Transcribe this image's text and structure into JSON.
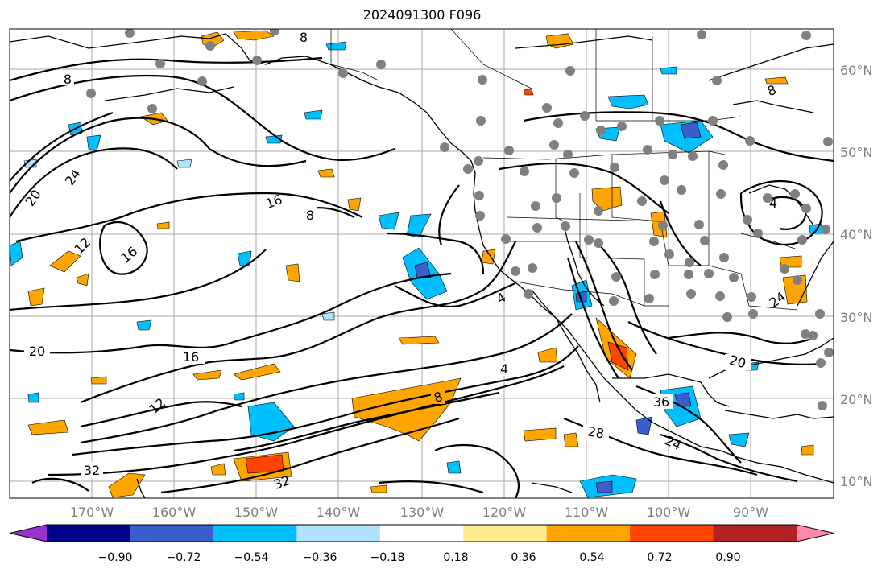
{
  "title": "2024091300 F096",
  "lon_labels": [
    "170°W",
    "160°W",
    "150°W",
    "140°W",
    "130°W",
    "120°W",
    "110°W",
    "100°W",
    "90°W"
  ],
  "lat_labels": [
    "60°N",
    "50°N",
    "40°N",
    "30°N",
    "20°N",
    "10°N"
  ],
  "contour_labels": [
    "8",
    "8",
    "20",
    "24",
    "12",
    "16",
    "16",
    "8",
    "20",
    "16",
    "12",
    "32",
    "32",
    "4",
    "8",
    "28",
    "24",
    "36",
    "20",
    "4",
    "24",
    "8",
    "4"
  ],
  "colorbar": {
    "ticks": [
      "−0.90",
      "−0.72",
      "−0.54",
      "−0.36",
      "−0.18",
      "0.18",
      "0.36",
      "0.54",
      "0.72",
      "0.90"
    ],
    "colors": [
      "#9b30d0",
      "#00008b",
      "#3a5fcd",
      "#00bfff",
      "#b0e2ff",
      "#ffffff",
      "#ffec8b",
      "#ffa500",
      "#ff4500",
      "#b22222",
      "#ff88aa"
    ]
  },
  "colors": {
    "positive": "#ffa500",
    "positive_strong": "#ff4500",
    "negative": "#00bfff",
    "negative_light": "#b0e2ff",
    "station_dot": "#808080",
    "axis_label": "#808080"
  }
}
